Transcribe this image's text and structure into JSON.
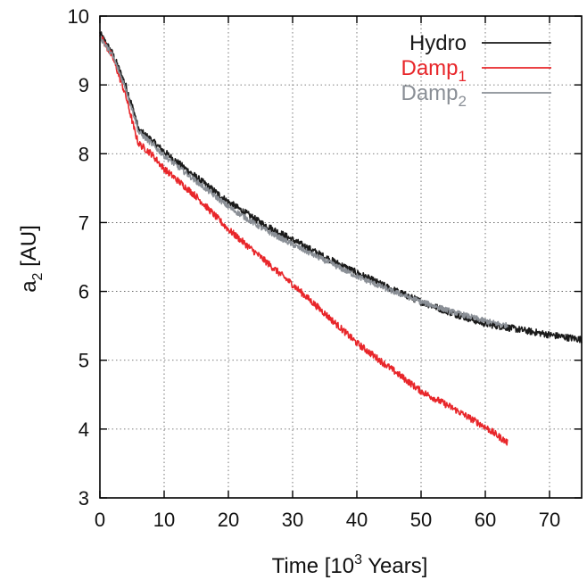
{
  "chart_data": {
    "type": "line",
    "xlim": [
      0,
      75
    ],
    "ylim": [
      3,
      10
    ],
    "x_ticks": [
      0,
      10,
      20,
      30,
      40,
      50,
      60,
      70
    ],
    "y_ticks": [
      3,
      4,
      5,
      6,
      7,
      8,
      9,
      10
    ],
    "x_tick_labels": [
      "0",
      "10",
      "20",
      "30",
      "40",
      "50",
      "60",
      "70"
    ],
    "y_tick_labels": [
      "3",
      "4",
      "5",
      "6",
      "7",
      "8",
      "9",
      "10"
    ],
    "xlabel": {
      "main": "Time   [10",
      "sup": "3",
      "rest": " Years]"
    },
    "ylabel": {
      "main": "a",
      "sub": "2",
      "rest": "  [AU]"
    },
    "grid": true,
    "legend_position": "top-right",
    "series": [
      {
        "name": "Hydro",
        "name_sub": "",
        "color": "#1a1a1a",
        "noise": 0.05,
        "points": [
          [
            0,
            9.75
          ],
          [
            2,
            9.45
          ],
          [
            4,
            9.0
          ],
          [
            5.5,
            8.55
          ],
          [
            6,
            8.35
          ],
          [
            8,
            8.2
          ],
          [
            10,
            8.03
          ],
          [
            12,
            7.88
          ],
          [
            15,
            7.66
          ],
          [
            20,
            7.3
          ],
          [
            25,
            7.0
          ],
          [
            30,
            6.75
          ],
          [
            35,
            6.5
          ],
          [
            40,
            6.27
          ],
          [
            45,
            6.05
          ],
          [
            50,
            5.85
          ],
          [
            55,
            5.68
          ],
          [
            60,
            5.53
          ],
          [
            65,
            5.45
          ],
          [
            70,
            5.37
          ],
          [
            75,
            5.3
          ]
        ]
      },
      {
        "name": "Damp",
        "name_sub": "1",
        "color": "#e8262a",
        "noise": 0.05,
        "points": [
          [
            0,
            9.72
          ],
          [
            2,
            9.4
          ],
          [
            4,
            8.85
          ],
          [
            5.5,
            8.3
          ],
          [
            6,
            8.15
          ],
          [
            8,
            8.0
          ],
          [
            10,
            7.78
          ],
          [
            15,
            7.38
          ],
          [
            20,
            6.9
          ],
          [
            25,
            6.5
          ],
          [
            30,
            6.1
          ],
          [
            35,
            5.68
          ],
          [
            40,
            5.25
          ],
          [
            45,
            4.9
          ],
          [
            50,
            4.55
          ],
          [
            55,
            4.3
          ],
          [
            60,
            4.03
          ],
          [
            63.5,
            3.8
          ]
        ]
      },
      {
        "name": "Damp",
        "name_sub": "2",
        "color": "#8a8f96",
        "noise": 0.04,
        "points": [
          [
            0,
            9.7
          ],
          [
            2,
            9.42
          ],
          [
            4,
            8.95
          ],
          [
            5.5,
            8.5
          ],
          [
            6,
            8.32
          ],
          [
            8,
            8.15
          ],
          [
            10,
            7.97
          ],
          [
            15,
            7.6
          ],
          [
            20,
            7.23
          ],
          [
            25,
            6.93
          ],
          [
            30,
            6.68
          ],
          [
            35,
            6.45
          ],
          [
            40,
            6.22
          ],
          [
            45,
            6.02
          ],
          [
            50,
            5.85
          ],
          [
            55,
            5.7
          ],
          [
            60,
            5.57
          ],
          [
            63.5,
            5.5
          ]
        ]
      }
    ]
  }
}
